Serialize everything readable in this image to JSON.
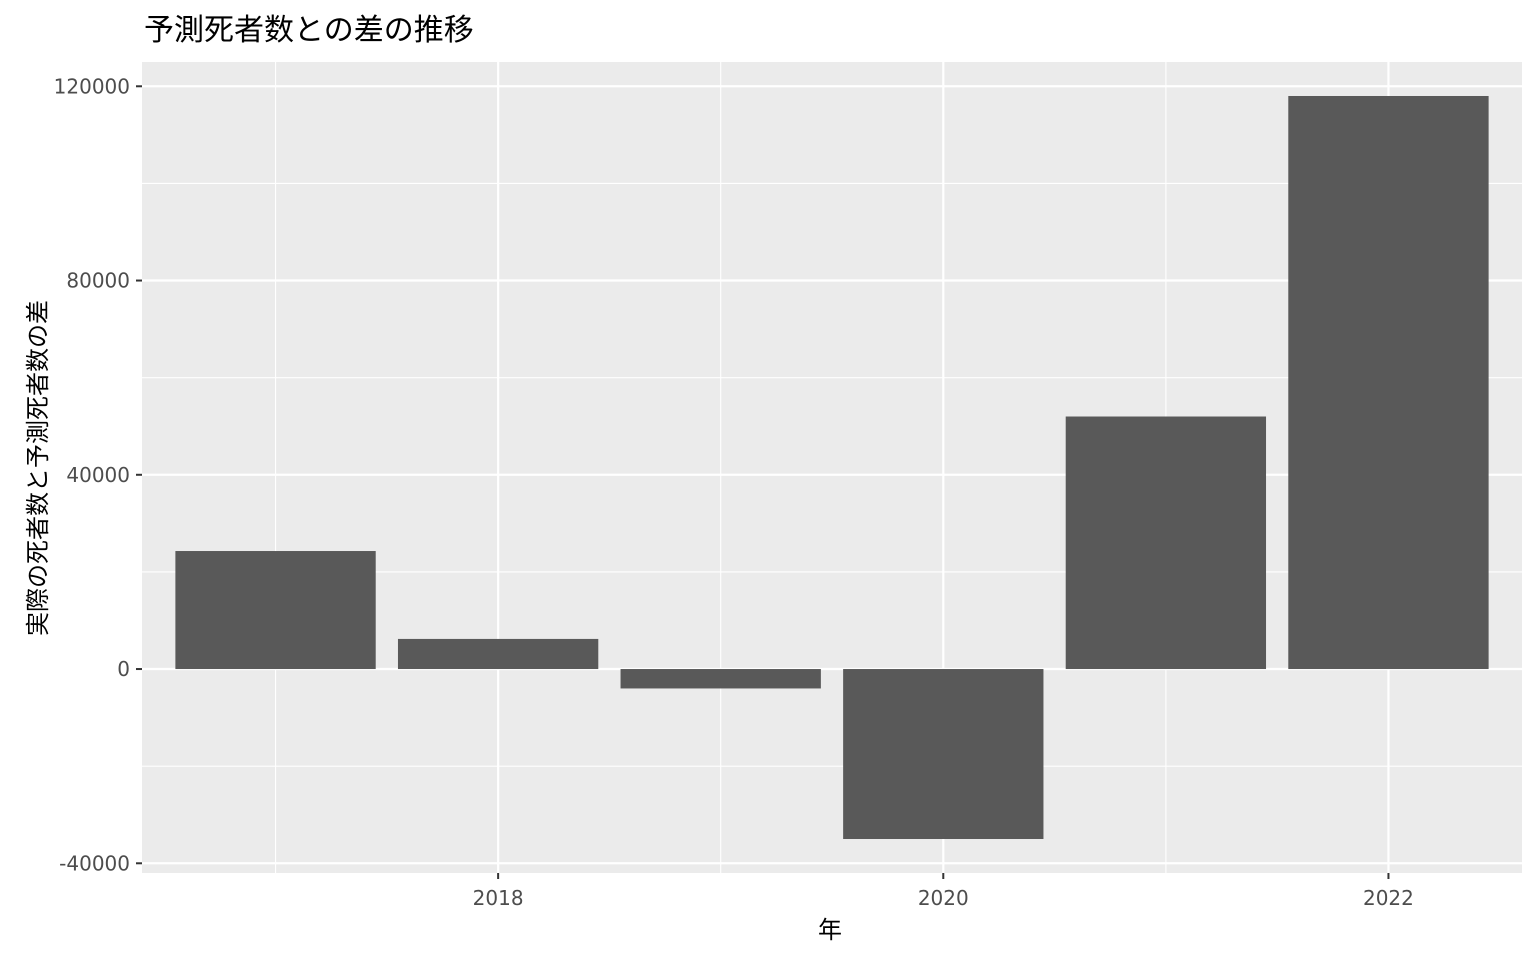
{
  "chart_data": {
    "type": "bar",
    "title": "予測死者数との差の推移",
    "xlabel": "年",
    "ylabel": "実際の死者数と予測死者数の差",
    "x": [
      2017,
      2018,
      2019,
      2020,
      2021,
      2022
    ],
    "values": [
      24300,
      6200,
      -4000,
      -35000,
      52000,
      118000
    ],
    "ylim": [
      -42000,
      125000
    ],
    "xlim": [
      2016.4,
      2022.6
    ],
    "y_ticks": [
      -40000,
      0,
      40000,
      80000,
      120000
    ],
    "y_tick_labels": [
      "-40000",
      "0",
      "40000",
      "80000",
      "120000"
    ],
    "x_ticks": [
      2018,
      2020,
      2022
    ],
    "x_tick_labels": [
      "2018",
      "2020",
      "2022"
    ],
    "grid": true,
    "colors": {
      "panel_background": "#ebebeb",
      "grid_line": "#ffffff",
      "bar_fill": "#595959",
      "tick_mark": "#333333"
    }
  }
}
